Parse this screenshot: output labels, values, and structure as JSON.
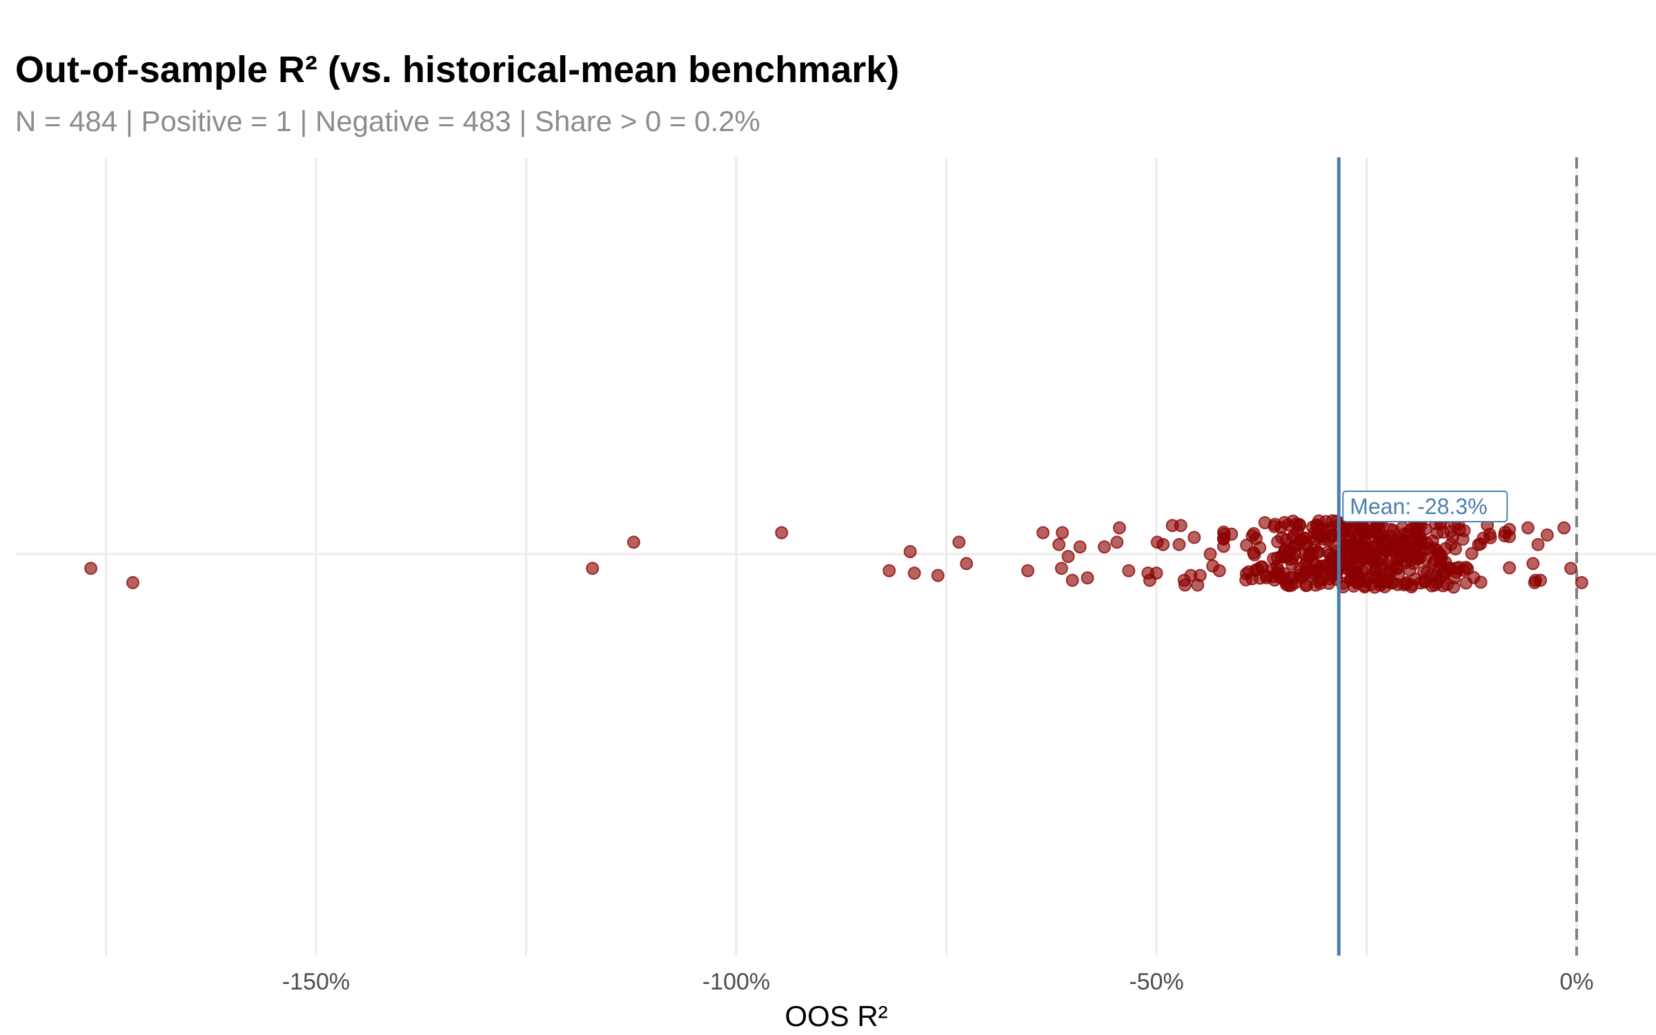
{
  "chart_data": {
    "type": "scatter",
    "title": "Out-of-sample R² (vs. historical-mean benchmark)",
    "subtitle": "N = 484 | Positive = 1 | Negative = 483 | Share > 0 = 0.2%",
    "xlabel": "OOS R²",
    "ylabel": "",
    "xlim": [
      -185,
      2
    ],
    "x_ticks": [
      -150,
      -100,
      -50,
      0
    ],
    "x_tick_labels": [
      "-150%",
      "-100%",
      "-50%",
      "0%"
    ],
    "x_minor_gridlines": [
      -175,
      -125,
      -75,
      -25
    ],
    "y_axis": "jitter (no scale)",
    "grid": true,
    "mean_line": {
      "value": -28.3,
      "label": "Mean: -28.3%",
      "color": "#4a7fb0"
    },
    "zero_line": {
      "value": 0,
      "style": "dashed",
      "color": "#808080"
    },
    "point_color": "#8b0000",
    "n_points": 484,
    "outlier_points": [
      {
        "x": -176.8,
        "y": -0.06
      },
      {
        "x": -171.8,
        "y": -0.12
      },
      {
        "x": -117.1,
        "y": -0.06
      },
      {
        "x": -112.2,
        "y": 0.05
      },
      {
        "x": -94.6,
        "y": 0.09
      },
      {
        "x": -79.3,
        "y": 0.01
      },
      {
        "x": -73.5,
        "y": 0.05
      },
      {
        "x": -72.6,
        "y": -0.04
      },
      {
        "x": -78.8,
        "y": -0.08
      },
      {
        "x": -81.8,
        "y": -0.07
      },
      {
        "x": -76.0,
        "y": -0.09
      },
      {
        "x": -65.3,
        "y": -0.07
      },
      {
        "x": -63.5,
        "y": 0.09
      },
      {
        "x": -61.2,
        "y": 0.09
      },
      {
        "x": -61.6,
        "y": 0.04
      },
      {
        "x": -60.5,
        "y": -0.01
      },
      {
        "x": -61.3,
        "y": -0.06
      },
      {
        "x": -60.0,
        "y": -0.11
      },
      {
        "x": -59.1,
        "y": 0.03
      },
      {
        "x": -58.2,
        "y": -0.1
      },
      {
        "x": -56.2,
        "y": 0.03
      },
      {
        "x": -54.4,
        "y": 0.11
      },
      {
        "x": -54.7,
        "y": 0.05
      },
      {
        "x": -53.3,
        "y": -0.07
      },
      {
        "x": -51.0,
        "y": -0.08
      },
      {
        "x": -50.8,
        "y": -0.11
      },
      {
        "x": -50.0,
        "y": -0.08
      },
      {
        "x": -49.9,
        "y": 0.05
      },
      {
        "x": -49.2,
        "y": 0.04
      },
      {
        "x": -48.1,
        "y": 0.12
      },
      {
        "x": -47.1,
        "y": 0.12
      },
      {
        "x": -47.3,
        "y": 0.04
      },
      {
        "x": -46.7,
        "y": -0.11
      },
      {
        "x": -46.6,
        "y": -0.13
      },
      {
        "x": -45.9,
        "y": -0.09
      },
      {
        "x": -45.5,
        "y": 0.07
      },
      {
        "x": -45.1,
        "y": -0.13
      },
      {
        "x": -44.8,
        "y": -0.09
      },
      {
        "x": -43.6,
        "y": 0.0
      },
      {
        "x": -43.3,
        "y": -0.05
      },
      {
        "x": -42.5,
        "y": -0.07
      },
      {
        "x": -5.8,
        "y": 0.11
      },
      {
        "x": -5.2,
        "y": -0.04
      },
      {
        "x": -5.0,
        "y": -0.12
      },
      {
        "x": -4.9,
        "y": -0.11
      },
      {
        "x": -4.6,
        "y": 0.04
      },
      {
        "x": -4.3,
        "y": -0.11
      },
      {
        "x": -3.5,
        "y": 0.08
      },
      {
        "x": -1.5,
        "y": 0.11
      },
      {
        "x": -0.7,
        "y": -0.06
      },
      {
        "x": 0.6,
        "y": -0.12
      }
    ],
    "cluster": {
      "x_range": [
        -42,
        -8
      ],
      "center": -25,
      "spread": 7.5,
      "y_range": [
        -0.14,
        0.14
      ]
    }
  }
}
